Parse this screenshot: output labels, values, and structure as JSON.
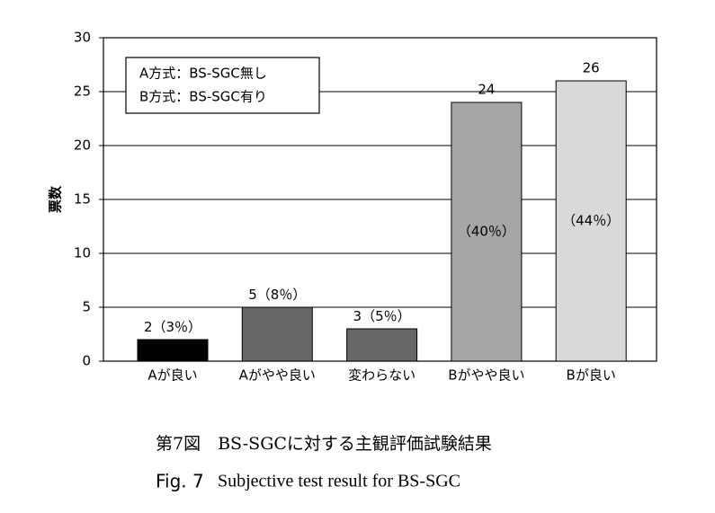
{
  "chart_data": {
    "type": "bar",
    "y_label": "票数",
    "legend_lines": [
      "A方式：BS-SGC無し",
      "B方式：BS-SGC有り"
    ],
    "categories": [
      "Aが良い",
      "Aがやや良い",
      "変わらない",
      "Bがやや良い",
      "Bが良い"
    ],
    "values": [
      2,
      5,
      3,
      24,
      26
    ],
    "colors": [
      "#000000",
      "#666666",
      "#666666",
      "#a6a6a6",
      "#d9d9d9"
    ],
    "shares": [
      3,
      8,
      5,
      40,
      44
    ],
    "share_labels": [
      "（3％）",
      "（8％）",
      "（5％）",
      "（40％）",
      "（44％）"
    ],
    "ylim": [
      0,
      30
    ],
    "yticks": [
      0,
      5,
      10,
      15,
      20,
      25,
      30
    ],
    "grid": true,
    "caption_ja": "第7図　BS-SGCに対する主観評価試験結果",
    "caption_en_prefix": "Fig. 7",
    "caption_en": "Subjective test result for BS-SGC"
  }
}
